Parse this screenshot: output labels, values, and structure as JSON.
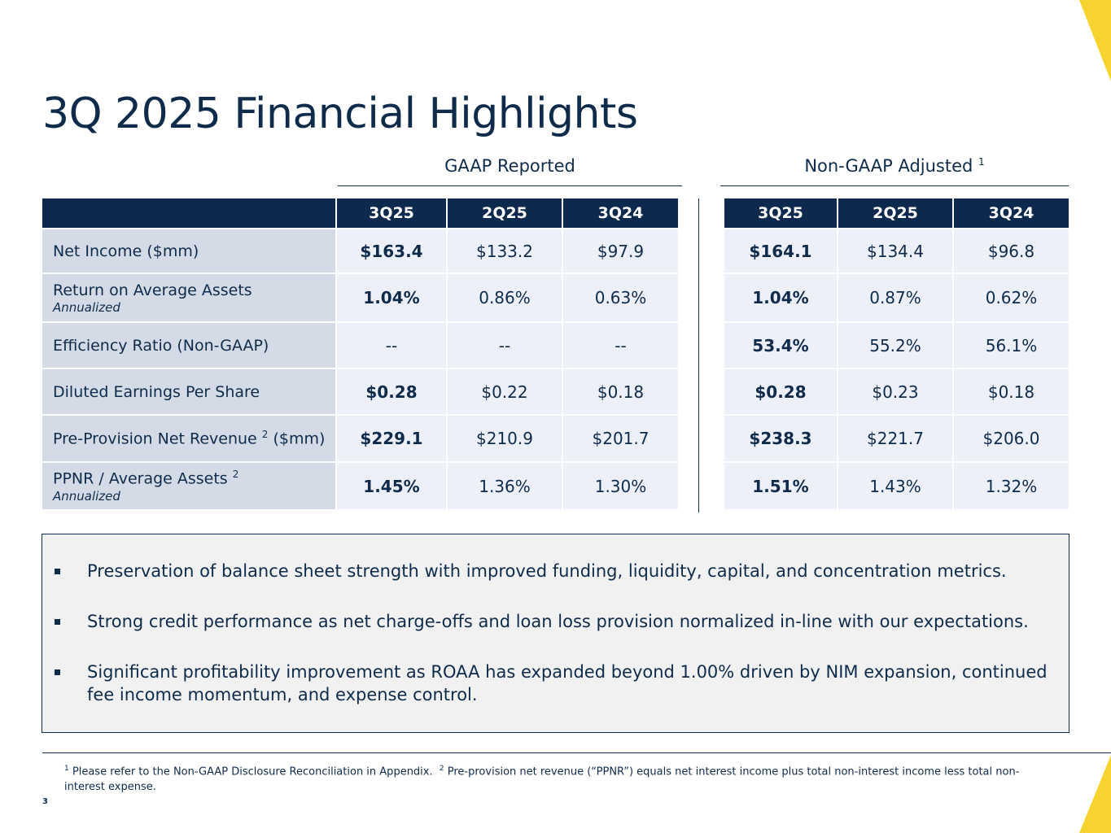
{
  "title": "3Q 2025 Financial Highlights",
  "colors": {
    "navy": "#0d2a4e",
    "accent_yellow": "#f6d32e",
    "label_bg": "#d5dbe6",
    "cell_bg": "#edf0f8",
    "summary_bg": "#f1f1f1"
  },
  "gaap": {
    "heading": "GAAP Reported",
    "columns": [
      "3Q25",
      "2Q25",
      "3Q24"
    ],
    "rows": [
      [
        "$163.4",
        "$133.2",
        "$97.9"
      ],
      [
        "1.04%",
        "0.86%",
        "0.63%"
      ],
      [
        "--",
        "--",
        "--"
      ],
      [
        "$0.28",
        "$0.22",
        "$0.18"
      ],
      [
        "$229.1",
        "$210.9",
        "$201.7"
      ],
      [
        "1.45%",
        "1.36%",
        "1.30%"
      ]
    ]
  },
  "nongaap": {
    "heading": "Non-GAAP Adjusted",
    "heading_note": "1",
    "columns": [
      "3Q25",
      "2Q25",
      "3Q24"
    ],
    "rows": [
      [
        "$164.1",
        "$134.4",
        "$96.8"
      ],
      [
        "1.04%",
        "0.87%",
        "0.62%"
      ],
      [
        "53.4%",
        "55.2%",
        "56.1%"
      ],
      [
        "$0.28",
        "$0.23",
        "$0.18"
      ],
      [
        "$238.3",
        "$221.7",
        "$206.0"
      ],
      [
        "1.51%",
        "1.43%",
        "1.32%"
      ]
    ]
  },
  "metrics": [
    {
      "label": "Net Income ($mm)",
      "note": "",
      "label_suffix": "",
      "sub": ""
    },
    {
      "label": "Return on Average Assets",
      "note": "",
      "label_suffix": "",
      "sub": "Annualized"
    },
    {
      "label": "Efficiency Ratio (Non-GAAP)",
      "note": "",
      "label_suffix": "",
      "sub": ""
    },
    {
      "label": "Diluted Earnings Per Share",
      "note": "",
      "label_suffix": "",
      "sub": ""
    },
    {
      "label": "Pre-Provision Net Revenue",
      "note": "2",
      "label_suffix": "($mm)",
      "sub": ""
    },
    {
      "label": "PPNR / Average Assets",
      "note": "2",
      "label_suffix": "",
      "sub": "Annualized"
    }
  ],
  "bullets": [
    "Preservation of balance sheet strength with improved funding, liquidity, capital, and concentration metrics.",
    "Strong credit performance as net charge-offs and loan loss provision normalized in-line with our expectations.",
    "Significant profitability improvement as ROAA has expanded beyond 1.00% driven by NIM expansion, continued fee income momentum, and expense control."
  ],
  "footnotes": {
    "note1_marker": "1",
    "note1": "Please refer to the Non-GAAP Disclosure Reconciliation in Appendix.",
    "note2_marker": "2",
    "note2": "Pre-provision net revenue (“PPNR”) equals net interest income plus total non-interest income less total non-interest expense."
  },
  "page_number": "3"
}
